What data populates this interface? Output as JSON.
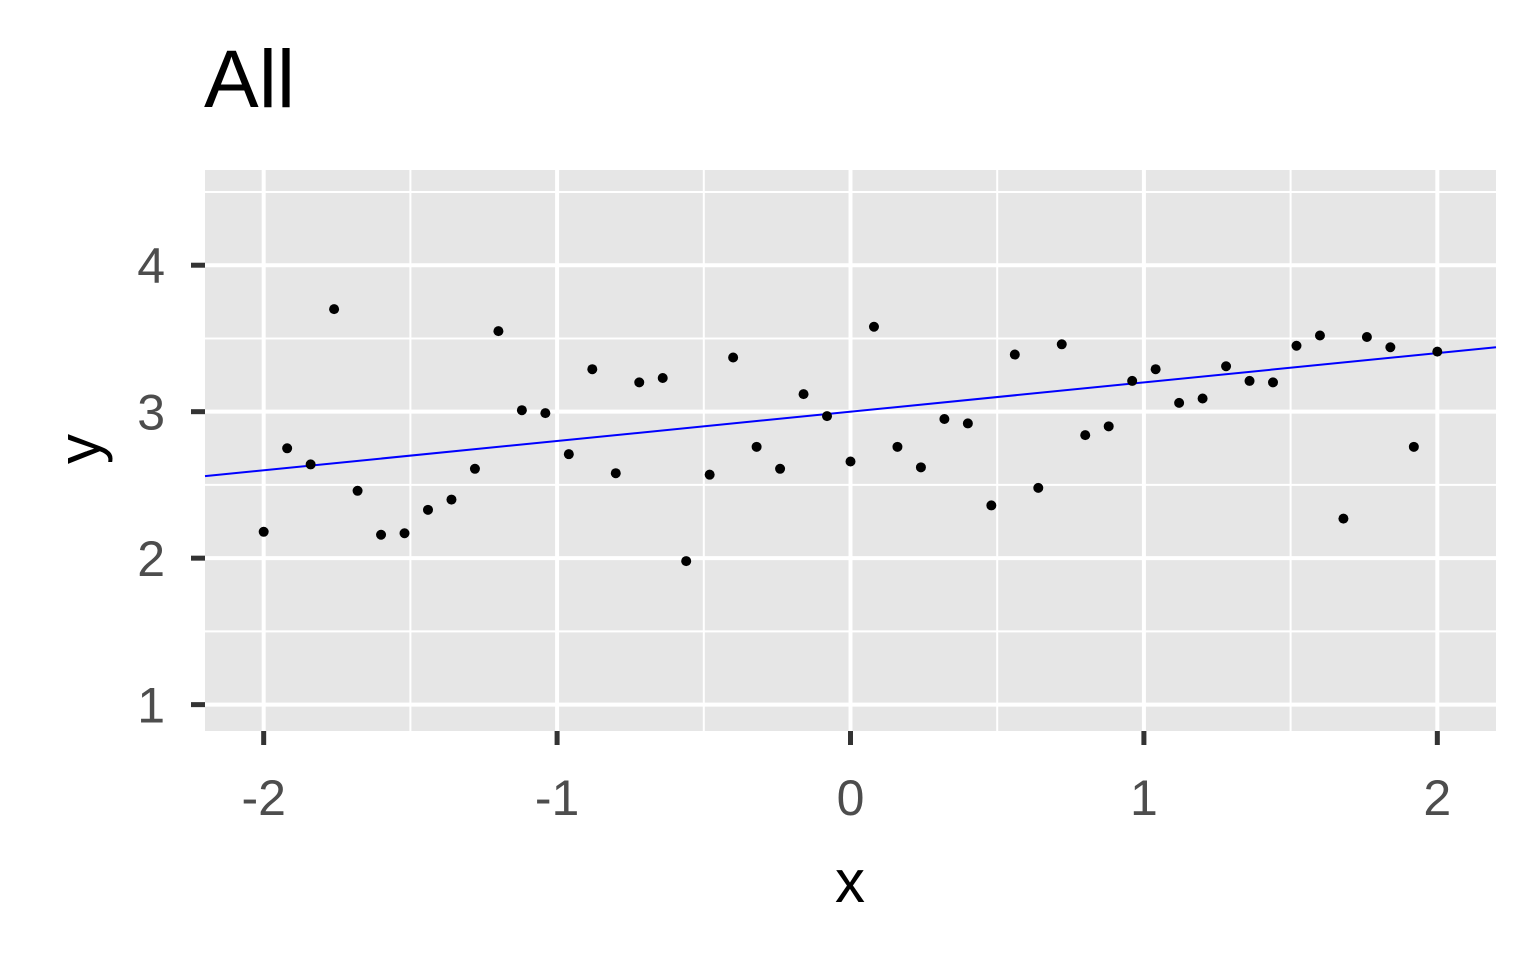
{
  "chart_data": {
    "type": "scatter",
    "title": "All",
    "xlabel": "x",
    "ylabel": "y",
    "xlim": [
      -2.2,
      2.2
    ],
    "ylim": [
      0.82,
      4.65
    ],
    "x_ticks": [
      -2,
      -1,
      0,
      1,
      2
    ],
    "x_tick_labels": [
      "-2",
      "-1",
      "0",
      "1",
      "2"
    ],
    "y_ticks": [
      1,
      2,
      3,
      4
    ],
    "y_tick_labels": [
      "1",
      "2",
      "3",
      "4"
    ],
    "grid": true,
    "legend": "none",
    "colors": {
      "panel_background": "#e6e6e6",
      "grid": "#ffffff",
      "points": "#000000",
      "fit_line": "#0000ff",
      "tick_label": "#4d4d4d",
      "tick_mark": "#333333"
    },
    "points": {
      "x": [
        -2.0,
        -1.92,
        -1.84,
        -1.76,
        -1.68,
        -1.6,
        -1.52,
        -1.44,
        -1.36,
        -1.28,
        -1.2,
        -1.12,
        -1.04,
        -0.96,
        -0.88,
        -0.8,
        -0.72,
        -0.64,
        -0.56,
        -0.48,
        -0.4,
        -0.32,
        -0.24,
        -0.16,
        -0.08,
        0.0,
        0.08,
        0.16,
        0.24,
        0.32,
        0.4,
        0.48,
        0.56,
        0.64,
        0.72,
        0.8,
        0.88,
        0.96,
        1.04,
        1.12,
        1.2,
        1.28,
        1.36,
        1.44,
        1.52,
        1.6,
        1.68,
        1.76,
        1.84,
        1.92,
        2.0
      ],
      "y": [
        2.18,
        2.75,
        2.64,
        3.7,
        2.46,
        2.16,
        2.17,
        2.33,
        2.4,
        2.61,
        3.55,
        3.01,
        2.99,
        2.71,
        3.29,
        2.58,
        3.2,
        3.23,
        1.98,
        2.57,
        3.37,
        2.76,
        2.61,
        3.12,
        2.97,
        2.66,
        3.58,
        2.76,
        2.62,
        2.95,
        2.92,
        2.36,
        3.39,
        2.48,
        3.46,
        2.84,
        2.9,
        3.21,
        3.29,
        3.06,
        3.09,
        3.31,
        3.21,
        3.2,
        3.45,
        3.52,
        2.27,
        3.51,
        3.44,
        2.76,
        3.41
      ]
    },
    "fit_line": {
      "x": [
        -2.2,
        2.2
      ],
      "y": [
        2.56,
        3.44
      ]
    }
  }
}
